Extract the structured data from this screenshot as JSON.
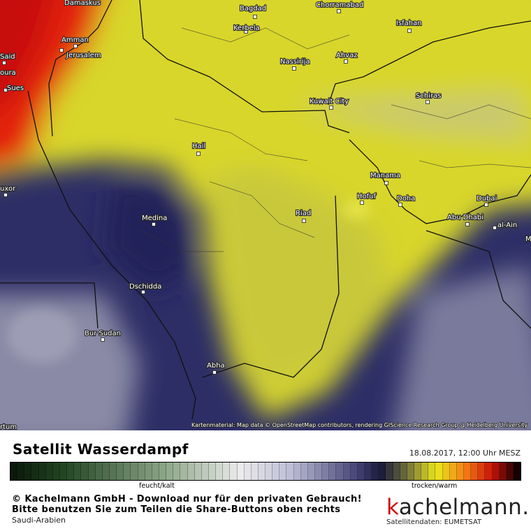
{
  "map": {
    "cities": [
      "Damaskus",
      "Bagdad",
      "Chorramabad",
      "Isfahan",
      "Kerbela",
      "Amman",
      "Jerusalem",
      "Said",
      "oura",
      "Nassirija",
      "Ahvaz",
      "Sues",
      "Kuwait City",
      "Schiras",
      "Hail",
      "Manama",
      "uxor",
      "Hofuf",
      "Doha",
      "Dubai",
      "Riad",
      "Medina",
      "Abu Dhabi",
      "al-Ain",
      "M",
      "Dschidda",
      "Bur Sudan",
      "Abha",
      "rtum"
    ],
    "attribution": "Kartenmaterial: Map data © OpenStreetMap contributors, rendering GIScience Research Group @ Heidelberg University"
  },
  "footer": {
    "title": "Satellit Wasserdampf",
    "timestamp": "18.08.2017, 12:00 Uhr MESZ",
    "scale_left": "feucht/kalt",
    "scale_right": "trocken/warm",
    "copyright": "© Kachelmann GmbH - Download nur für den privaten Gebrauch!",
    "share_note": "Bitte benutzen Sie zum Teilen die Share-Buttons oben rechts",
    "region": "Saudi-Arabien",
    "brand": "kachelmann.",
    "data_source": "Satellitendaten: EUMETSAT"
  }
}
